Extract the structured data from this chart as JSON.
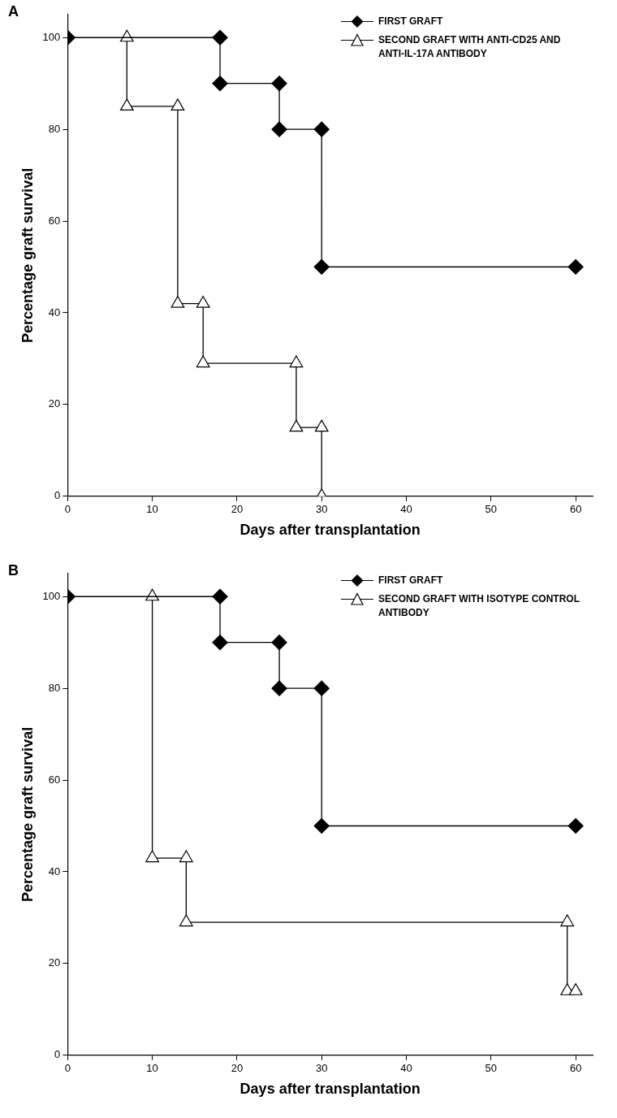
{
  "chart_data": [
    {
      "type": "line",
      "title": "A",
      "xlabel": "Days after transplantation",
      "ylabel": "Percentage graft survival",
      "xlim": [
        0,
        62
      ],
      "xticks": [
        0,
        10,
        20,
        30,
        40,
        50,
        60
      ],
      "ylim": [
        0,
        105
      ],
      "yticks": [
        0,
        20,
        40,
        60,
        80,
        100
      ],
      "grid": false,
      "legend": "top right",
      "line_style": "solid",
      "series": [
        {
          "name": "FIRST GRAFT",
          "color": "#000000",
          "marker": "diamond",
          "x": [
            0,
            18,
            18,
            25,
            25,
            30,
            30,
            60
          ],
          "values": [
            100,
            100,
            90,
            90,
            80,
            80,
            50,
            50
          ]
        },
        {
          "name": "SECOND GRAFT WITH ANTI-CD25 AND ANTI-IL-17A ANTIBODY",
          "color": "#000000",
          "marker": "triangle",
          "x": [
            7,
            7,
            13,
            13,
            16,
            16,
            27,
            27,
            30,
            30
          ],
          "values": [
            100,
            85,
            85,
            42,
            42,
            29,
            29,
            15,
            15,
            0
          ]
        }
      ]
    },
    {
      "type": "line",
      "title": "B",
      "xlabel": "Days after transplantation",
      "ylabel": "Percentage graft survival",
      "xlim": [
        0,
        62
      ],
      "xticks": [
        0,
        10,
        20,
        30,
        40,
        50,
        60
      ],
      "ylim": [
        0,
        105
      ],
      "yticks": [
        0,
        20,
        40,
        60,
        80,
        100
      ],
      "grid": false,
      "legend": "top right",
      "line_style": "solid",
      "series": [
        {
          "name": "FIRST GRAFT",
          "color": "#000000",
          "marker": "diamond",
          "x": [
            0,
            18,
            18,
            25,
            25,
            30,
            30,
            60
          ],
          "values": [
            100,
            100,
            90,
            90,
            80,
            80,
            50,
            50
          ]
        },
        {
          "name": "SECOND GRAFT WITH ISOTYPE CONTROL ANTIBODY",
          "color": "#000000",
          "marker": "triangle",
          "x": [
            10,
            10,
            14,
            14,
            59,
            59,
            60
          ],
          "values": [
            100,
            43,
            43,
            29,
            29,
            14,
            14
          ]
        }
      ]
    }
  ]
}
